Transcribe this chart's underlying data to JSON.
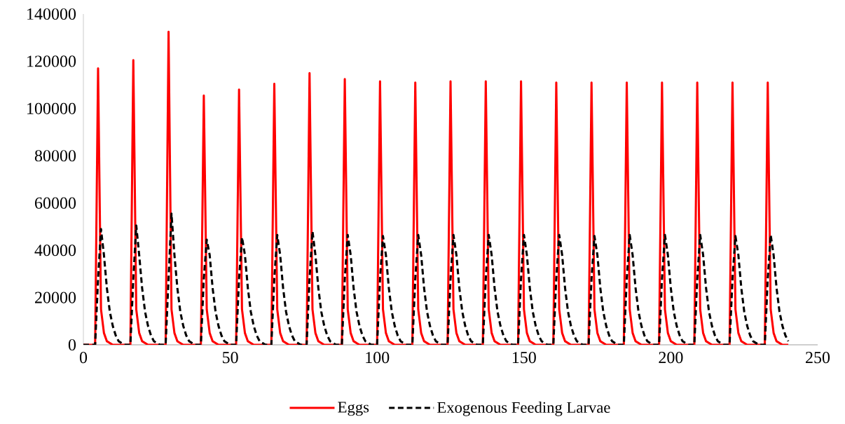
{
  "chart_data": {
    "type": "line",
    "xlim": [
      0,
      250
    ],
    "ylim": [
      0,
      140000
    ],
    "xticks": [
      0,
      50,
      100,
      150,
      200,
      250
    ],
    "yticks": [
      0,
      20000,
      40000,
      60000,
      80000,
      100000,
      120000,
      140000
    ],
    "grid": false,
    "legend": "bottom",
    "marker": "none",
    "series": [
      {
        "name": "Eggs",
        "color": "#ff0000",
        "line_style": "solid",
        "x": [
          0,
          4,
          5,
          6,
          7,
          8,
          10,
          16,
          17,
          18,
          19,
          20,
          22,
          28,
          29,
          30,
          31,
          32,
          34,
          40,
          41,
          42,
          43,
          44,
          46,
          52,
          53,
          54,
          55,
          56,
          58,
          64,
          65,
          66,
          67,
          68,
          70,
          76,
          77,
          78,
          79,
          80,
          82,
          88,
          89,
          90,
          91,
          92,
          94,
          100,
          101,
          102,
          103,
          104,
          106,
          112,
          113,
          114,
          115,
          116,
          118,
          124,
          125,
          126,
          127,
          128,
          130,
          136,
          137,
          138,
          139,
          140,
          142,
          148,
          149,
          150,
          151,
          152,
          154,
          160,
          161,
          162,
          163,
          164,
          166,
          172,
          173,
          174,
          175,
          176,
          178,
          184,
          185,
          186,
          187,
          188,
          190,
          196,
          197,
          198,
          199,
          200,
          202,
          208,
          209,
          210,
          211,
          212,
          214,
          220,
          221,
          222,
          223,
          224,
          226,
          232,
          233,
          234,
          235,
          236,
          238,
          240
        ],
        "values": [
          0,
          0,
          117000,
          15000,
          5000,
          1500,
          0,
          0,
          120500,
          15000,
          5000,
          1500,
          0,
          0,
          132500,
          15000,
          5000,
          1500,
          0,
          0,
          105500,
          15000,
          5000,
          1500,
          0,
          0,
          108000,
          15000,
          5000,
          1500,
          0,
          0,
          110500,
          15000,
          5000,
          1500,
          0,
          0,
          115000,
          15000,
          5000,
          1500,
          0,
          0,
          112500,
          15000,
          5000,
          1500,
          0,
          0,
          111500,
          15000,
          5000,
          1500,
          0,
          0,
          111000,
          15000,
          5000,
          1500,
          0,
          0,
          111500,
          15000,
          5000,
          1500,
          0,
          0,
          111500,
          15000,
          5000,
          1500,
          0,
          0,
          111500,
          15000,
          5000,
          1500,
          0,
          0,
          111000,
          15000,
          5000,
          1500,
          0,
          0,
          111000,
          15000,
          5000,
          1500,
          0,
          0,
          111000,
          15000,
          5000,
          1500,
          0,
          0,
          111000,
          15000,
          5000,
          1500,
          0,
          0,
          111000,
          15000,
          5000,
          1500,
          0,
          0,
          111000,
          15000,
          5000,
          1500,
          0,
          0,
          111000,
          15000,
          5000,
          1500,
          0,
          0
        ]
      },
      {
        "name": "Exogenous Feeding Larvae",
        "color": "#000000",
        "line_style": "dashed",
        "x": [
          0,
          4,
          5,
          6,
          7,
          8,
          9,
          10,
          11,
          12,
          14,
          16,
          17,
          18,
          19,
          20,
          21,
          22,
          23,
          24,
          26,
          28,
          29,
          30,
          31,
          32,
          33,
          34,
          35,
          36,
          38,
          40,
          41,
          42,
          43,
          44,
          45,
          46,
          47,
          48,
          50,
          52,
          53,
          54,
          55,
          56,
          57,
          58,
          59,
          60,
          62,
          64,
          65,
          66,
          67,
          68,
          69,
          70,
          71,
          72,
          74,
          76,
          77,
          78,
          79,
          80,
          81,
          82,
          83,
          84,
          86,
          88,
          89,
          90,
          91,
          92,
          93,
          94,
          95,
          96,
          98,
          100,
          101,
          102,
          103,
          104,
          105,
          106,
          107,
          108,
          110,
          112,
          113,
          114,
          115,
          116,
          117,
          118,
          119,
          120,
          122,
          124,
          125,
          126,
          127,
          128,
          129,
          130,
          131,
          132,
          134,
          136,
          137,
          138,
          139,
          140,
          141,
          142,
          143,
          144,
          146,
          148,
          149,
          150,
          151,
          152,
          153,
          154,
          155,
          156,
          158,
          160,
          161,
          162,
          163,
          164,
          165,
          166,
          167,
          168,
          170,
          172,
          173,
          174,
          175,
          176,
          177,
          178,
          179,
          180,
          182,
          184,
          185,
          186,
          187,
          188,
          189,
          190,
          191,
          192,
          194,
          196,
          197,
          198,
          199,
          200,
          201,
          202,
          203,
          204,
          206,
          208,
          209,
          210,
          211,
          212,
          213,
          214,
          215,
          216,
          218,
          220,
          221,
          222,
          223,
          224,
          225,
          226,
          227,
          228,
          230,
          232,
          233,
          234,
          235,
          236,
          237,
          238,
          239,
          240
        ],
        "values": [
          0,
          0,
          28000,
          49000,
          38000,
          24000,
          14000,
          8000,
          4000,
          1500,
          0,
          0,
          28000,
          50500,
          38000,
          24000,
          14000,
          8000,
          4000,
          1500,
          0,
          0,
          28000,
          55500,
          38000,
          24000,
          14000,
          8000,
          4000,
          1500,
          0,
          0,
          28000,
          44500,
          38000,
          24000,
          14000,
          8000,
          4000,
          1500,
          0,
          0,
          28000,
          45500,
          38000,
          24000,
          14000,
          8000,
          4000,
          1500,
          0,
          0,
          28000,
          46500,
          38000,
          24000,
          14000,
          8000,
          4000,
          1500,
          0,
          0,
          28000,
          48000,
          38000,
          24000,
          14000,
          8000,
          4000,
          1500,
          0,
          0,
          28000,
          46500,
          38000,
          24000,
          14000,
          8000,
          4000,
          1500,
          0,
          0,
          28000,
          46000,
          38000,
          24000,
          14000,
          8000,
          4000,
          1500,
          0,
          0,
          28000,
          46500,
          38000,
          24000,
          14000,
          8000,
          4000,
          1500,
          0,
          0,
          28000,
          46500,
          38000,
          24000,
          14000,
          8000,
          4000,
          1500,
          0,
          0,
          28000,
          46500,
          38000,
          24000,
          14000,
          8000,
          4000,
          1500,
          0,
          0,
          28000,
          46500,
          38000,
          24000,
          14000,
          8000,
          4000,
          1500,
          0,
          0,
          28000,
          46500,
          38000,
          24000,
          14000,
          8000,
          4000,
          1500,
          0,
          0,
          28000,
          46000,
          38000,
          24000,
          14000,
          8000,
          4000,
          1500,
          0,
          0,
          28000,
          46500,
          38000,
          24000,
          14000,
          8000,
          4000,
          1500,
          0,
          0,
          28000,
          46500,
          38000,
          24000,
          14000,
          8000,
          4000,
          1500,
          0,
          0,
          28000,
          46500,
          38000,
          24000,
          14000,
          8000,
          4000,
          1500,
          0,
          0,
          28000,
          46000,
          38000,
          24000,
          14000,
          8000,
          4000,
          1500,
          0,
          0,
          28000,
          46500,
          38000,
          24000,
          14000,
          8000,
          4000,
          1500
        ]
      }
    ]
  }
}
